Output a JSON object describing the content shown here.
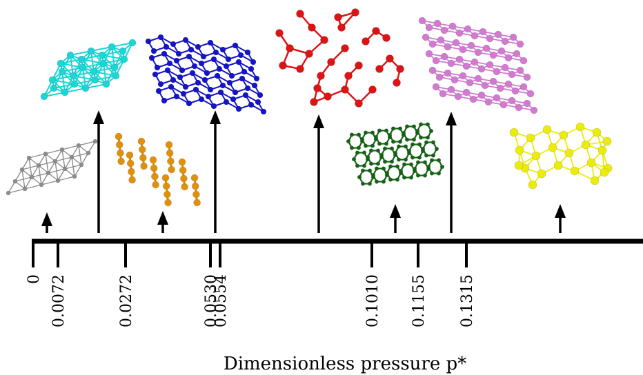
{
  "xlabel": "Dimensionless pressure p*",
  "tick_labels": [
    "0",
    "0.0072",
    "0.0272",
    "0.0530",
    "0.0554",
    "0.1010",
    "0.1155",
    "0.1315"
  ],
  "colors": {
    "axis": "#000000",
    "gray_structure": "#8c8c8c",
    "cyan_structure": "#1ad6d6",
    "orange_structure": "#e0900a",
    "blue_structure": "#1414c8",
    "red_structure": "#dc1414",
    "green_structure": "#146414",
    "violet_structure": "#d27ad2",
    "yellow_structure": "#ecec0a"
  },
  "structures": [
    {
      "name": "gray-fcc-lattice",
      "color_key": "gray_structure"
    },
    {
      "name": "cyan-cubic-lattice",
      "color_key": "cyan_structure"
    },
    {
      "name": "orange-chain-structure",
      "color_key": "orange_structure"
    },
    {
      "name": "blue-layered-hexagonal",
      "color_key": "blue_structure"
    },
    {
      "name": "red-network-structure",
      "color_key": "red_structure"
    },
    {
      "name": "green-helical-structure",
      "color_key": "green_structure"
    },
    {
      "name": "violet-layered-structure",
      "color_key": "violet_structure"
    },
    {
      "name": "yellow-dense-structure",
      "color_key": "yellow_structure"
    }
  ]
}
